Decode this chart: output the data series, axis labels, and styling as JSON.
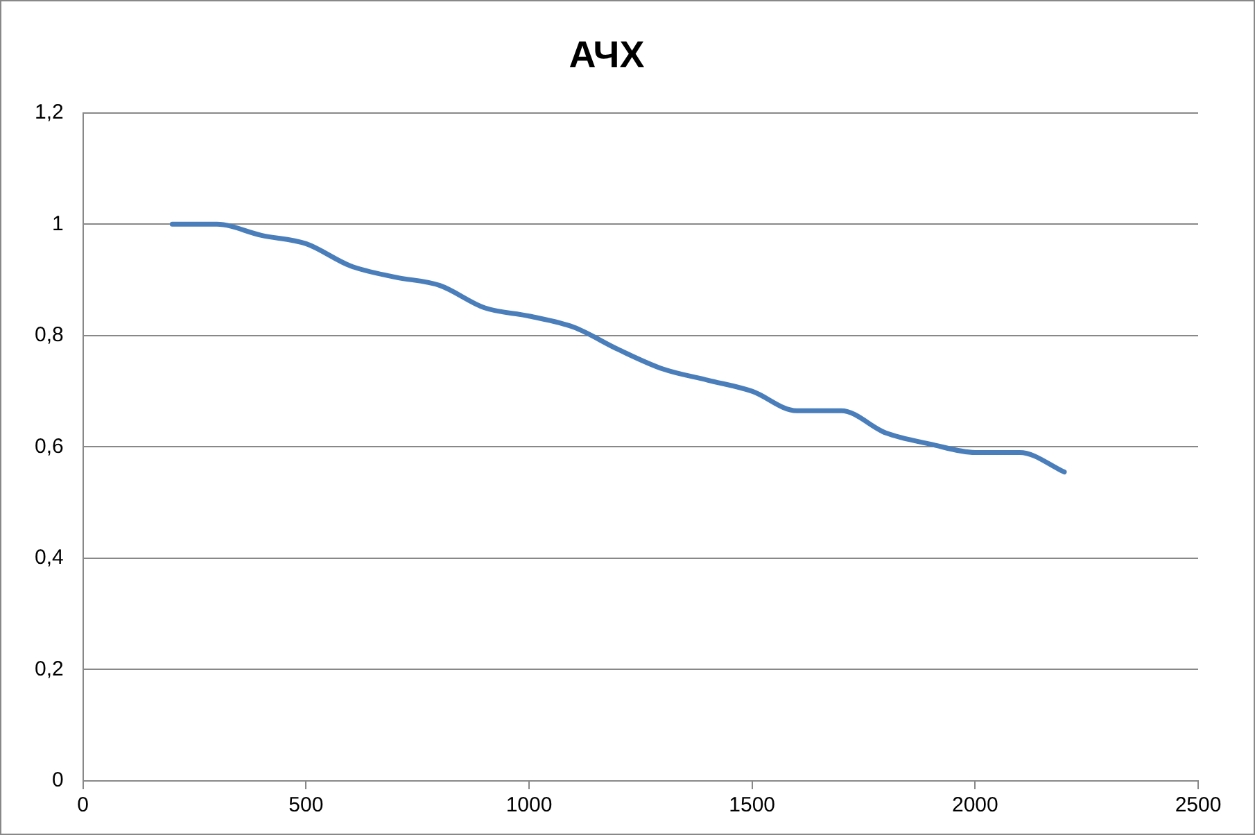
{
  "chart_data": {
    "type": "line",
    "title": "АЧХ",
    "x": [
      200,
      300,
      400,
      500,
      600,
      700,
      800,
      900,
      1000,
      1100,
      1200,
      1300,
      1400,
      1500,
      1600,
      1700,
      1800,
      1900,
      2000,
      2100,
      2200
    ],
    "series": [
      {
        "color": "#4a7ebb",
        "values": [
          1.0,
          1.0,
          0.98,
          0.965,
          0.925,
          0.905,
          0.89,
          0.85,
          0.835,
          0.815,
          0.775,
          0.74,
          0.72,
          0.7,
          0.665,
          0.665,
          0.625,
          0.605,
          0.59,
          0.59,
          0.555
        ]
      }
    ],
    "xlim": [
      0,
      2500
    ],
    "xticks": [
      0,
      500,
      1000,
      1500,
      2000,
      2500
    ],
    "ylim": [
      0,
      1.2
    ],
    "yticks": [
      0,
      {
        "value": 0.2,
        "label": "0,2"
      },
      {
        "value": 0.4,
        "label": "0,4"
      },
      {
        "value": 0.6,
        "label": "0,6"
      },
      {
        "value": 0.8,
        "label": "0,8"
      },
      1,
      {
        "value": 1.2,
        "label": "1,2"
      }
    ],
    "grid": "y",
    "legend": false,
    "marker": "none",
    "line_style": "solid"
  }
}
